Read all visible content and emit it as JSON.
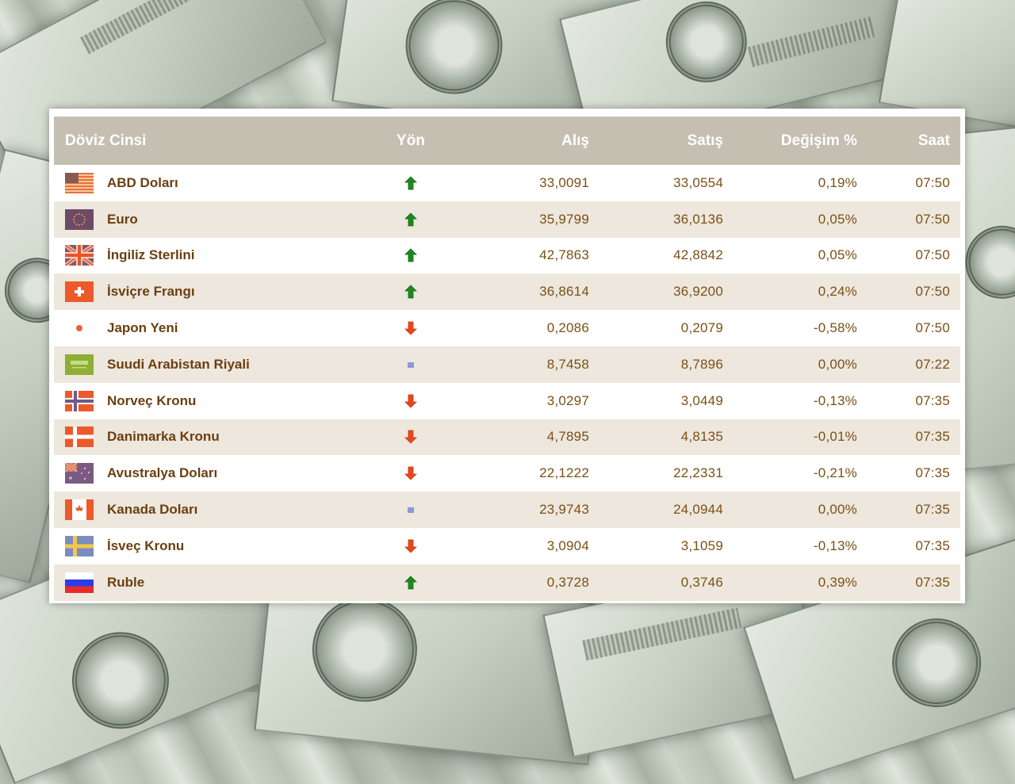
{
  "background": {
    "description": "pile of US 100 dollar bills"
  },
  "colors": {
    "header_bg": "#c5bfb2",
    "header_text": "#ffffff",
    "row_odd_bg": "#ffffff",
    "row_even_bg": "#ede7dd",
    "text": "#7a4a12",
    "up": "#1e8a1e",
    "down": "#e8471e",
    "neutral": "#8a9ad8"
  },
  "table": {
    "headers": {
      "currency": "Döviz Cinsi",
      "direction": "Yön",
      "buy": "Alış",
      "sell": "Satış",
      "change": "Değişim %",
      "time": "Saat"
    },
    "rows": [
      {
        "flag": "us-flag-icon",
        "name": "ABD Doları",
        "direction": "up",
        "buy": "33,0091",
        "sell": "33,0554",
        "change": "0,19%",
        "time": "07:50"
      },
      {
        "flag": "eu-flag-icon",
        "name": "Euro",
        "direction": "up",
        "buy": "35,9799",
        "sell": "36,0136",
        "change": "0,05%",
        "time": "07:50"
      },
      {
        "flag": "uk-flag-icon",
        "name": "İngiliz Sterlini",
        "direction": "up",
        "buy": "42,7863",
        "sell": "42,8842",
        "change": "0,05%",
        "time": "07:50"
      },
      {
        "flag": "ch-flag-icon",
        "name": "İsviçre Frangı",
        "direction": "up",
        "buy": "36,8614",
        "sell": "36,9200",
        "change": "0,24%",
        "time": "07:50"
      },
      {
        "flag": "jp-flag-icon",
        "name": "Japon Yeni",
        "direction": "down",
        "buy": "0,2086",
        "sell": "0,2079",
        "change": "-0,58%",
        "time": "07:50"
      },
      {
        "flag": "sa-flag-icon",
        "name": "Suudi Arabistan Riyali",
        "direction": "neutral",
        "buy": "8,7458",
        "sell": "8,7896",
        "change": "0,00%",
        "time": "07:22"
      },
      {
        "flag": "no-flag-icon",
        "name": "Norveç Kronu",
        "direction": "down",
        "buy": "3,0297",
        "sell": "3,0449",
        "change": "-0,13%",
        "time": "07:35"
      },
      {
        "flag": "dk-flag-icon",
        "name": "Danimarka Kronu",
        "direction": "down",
        "buy": "4,7895",
        "sell": "4,8135",
        "change": "-0,01%",
        "time": "07:35"
      },
      {
        "flag": "au-flag-icon",
        "name": "Avustralya Doları",
        "direction": "down",
        "buy": "22,1222",
        "sell": "22,2331",
        "change": "-0,21%",
        "time": "07:35"
      },
      {
        "flag": "ca-flag-icon",
        "name": "Kanada Doları",
        "direction": "neutral",
        "buy": "23,9743",
        "sell": "24,0944",
        "change": "0,00%",
        "time": "07:35"
      },
      {
        "flag": "se-flag-icon",
        "name": "İsveç Kronu",
        "direction": "down",
        "buy": "3,0904",
        "sell": "3,1059",
        "change": "-0,13%",
        "time": "07:35"
      },
      {
        "flag": "ru-flag-icon",
        "name": "Ruble",
        "direction": "up",
        "buy": "0,3728",
        "sell": "0,3746",
        "change": "0,39%",
        "time": "07:35"
      }
    ]
  }
}
